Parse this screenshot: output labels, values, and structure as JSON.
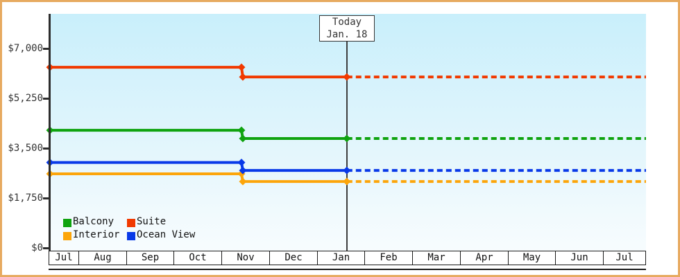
{
  "colors": {
    "frame_border": "#e7aa60",
    "plot_bg_top": "#c9effb",
    "plot_bg_bottom": "#f7fcfe",
    "axis": "#2d2d2d",
    "suite": "#f13900",
    "balcony": "#0fa30f",
    "interior": "#fca50a",
    "ocean_view": "#0839e8"
  },
  "chart_data": {
    "type": "line",
    "title": "",
    "grid": false,
    "y_axis": {
      "min": 0,
      "max": 7000,
      "ticks": [
        {
          "label": "$7,000",
          "value": 7000
        },
        {
          "label": "$5,250",
          "value": 5250
        },
        {
          "label": "$3,500",
          "value": 3500
        },
        {
          "label": "$1,750",
          "value": 1750
        },
        {
          "label": "$0",
          "value": 0
        }
      ]
    },
    "x_axis": {
      "labels": [
        "Jul",
        "Aug",
        "Sep",
        "Oct",
        "Nov",
        "Dec",
        "Jan",
        "Feb",
        "Mar",
        "Apr",
        "May",
        "Jun",
        "Jul"
      ]
    },
    "today_marker": {
      "line1": "Today",
      "line2": "Jan. 18",
      "x_frac": 0.498
    },
    "price_drop_x_frac": 0.3213,
    "series": [
      {
        "name": "Suite",
        "color": "#f13900",
        "points": [
          {
            "x_frac": 0.0,
            "price": 6340
          },
          {
            "x_frac": 0.3213,
            "price": 6340
          },
          {
            "x_frac": 0.3236,
            "price": 6000
          },
          {
            "x_frac": 0.498,
            "price": 6000
          }
        ],
        "forecast": {
          "to_x_frac": 1.0,
          "price": 6000,
          "style": "dashed"
        }
      },
      {
        "name": "Balcony",
        "color": "#0fa30f",
        "points": [
          {
            "x_frac": 0.0,
            "price": 4130
          },
          {
            "x_frac": 0.3213,
            "price": 4130
          },
          {
            "x_frac": 0.3236,
            "price": 3840
          },
          {
            "x_frac": 0.498,
            "price": 3840
          }
        ],
        "forecast": {
          "to_x_frac": 1.0,
          "price": 3840,
          "style": "dashed"
        }
      },
      {
        "name": "Interior",
        "color": "#fca50a",
        "points": [
          {
            "x_frac": 0.0,
            "price": 2600
          },
          {
            "x_frac": 0.3213,
            "price": 2600
          },
          {
            "x_frac": 0.3236,
            "price": 2330
          },
          {
            "x_frac": 0.498,
            "price": 2330
          }
        ],
        "forecast": {
          "to_x_frac": 1.0,
          "price": 2330,
          "style": "dashed"
        }
      },
      {
        "name": "Ocean View",
        "color": "#0839e8",
        "points": [
          {
            "x_frac": 0.0,
            "price": 3000
          },
          {
            "x_frac": 0.3213,
            "price": 3000
          },
          {
            "x_frac": 0.3236,
            "price": 2720
          },
          {
            "x_frac": 0.498,
            "price": 2720
          }
        ],
        "forecast": {
          "to_x_frac": 1.0,
          "price": 2720,
          "style": "dashed"
        }
      }
    ],
    "legend": {
      "position": "bottom-left-inside",
      "rows": [
        [
          {
            "label": "Balcony",
            "color": "#0fa30f"
          },
          {
            "label": "Suite",
            "color": "#f13900"
          }
        ],
        [
          {
            "label": "Interior",
            "color": "#fca50a"
          },
          {
            "label": "Ocean View",
            "color": "#0839e8"
          }
        ]
      ]
    }
  }
}
